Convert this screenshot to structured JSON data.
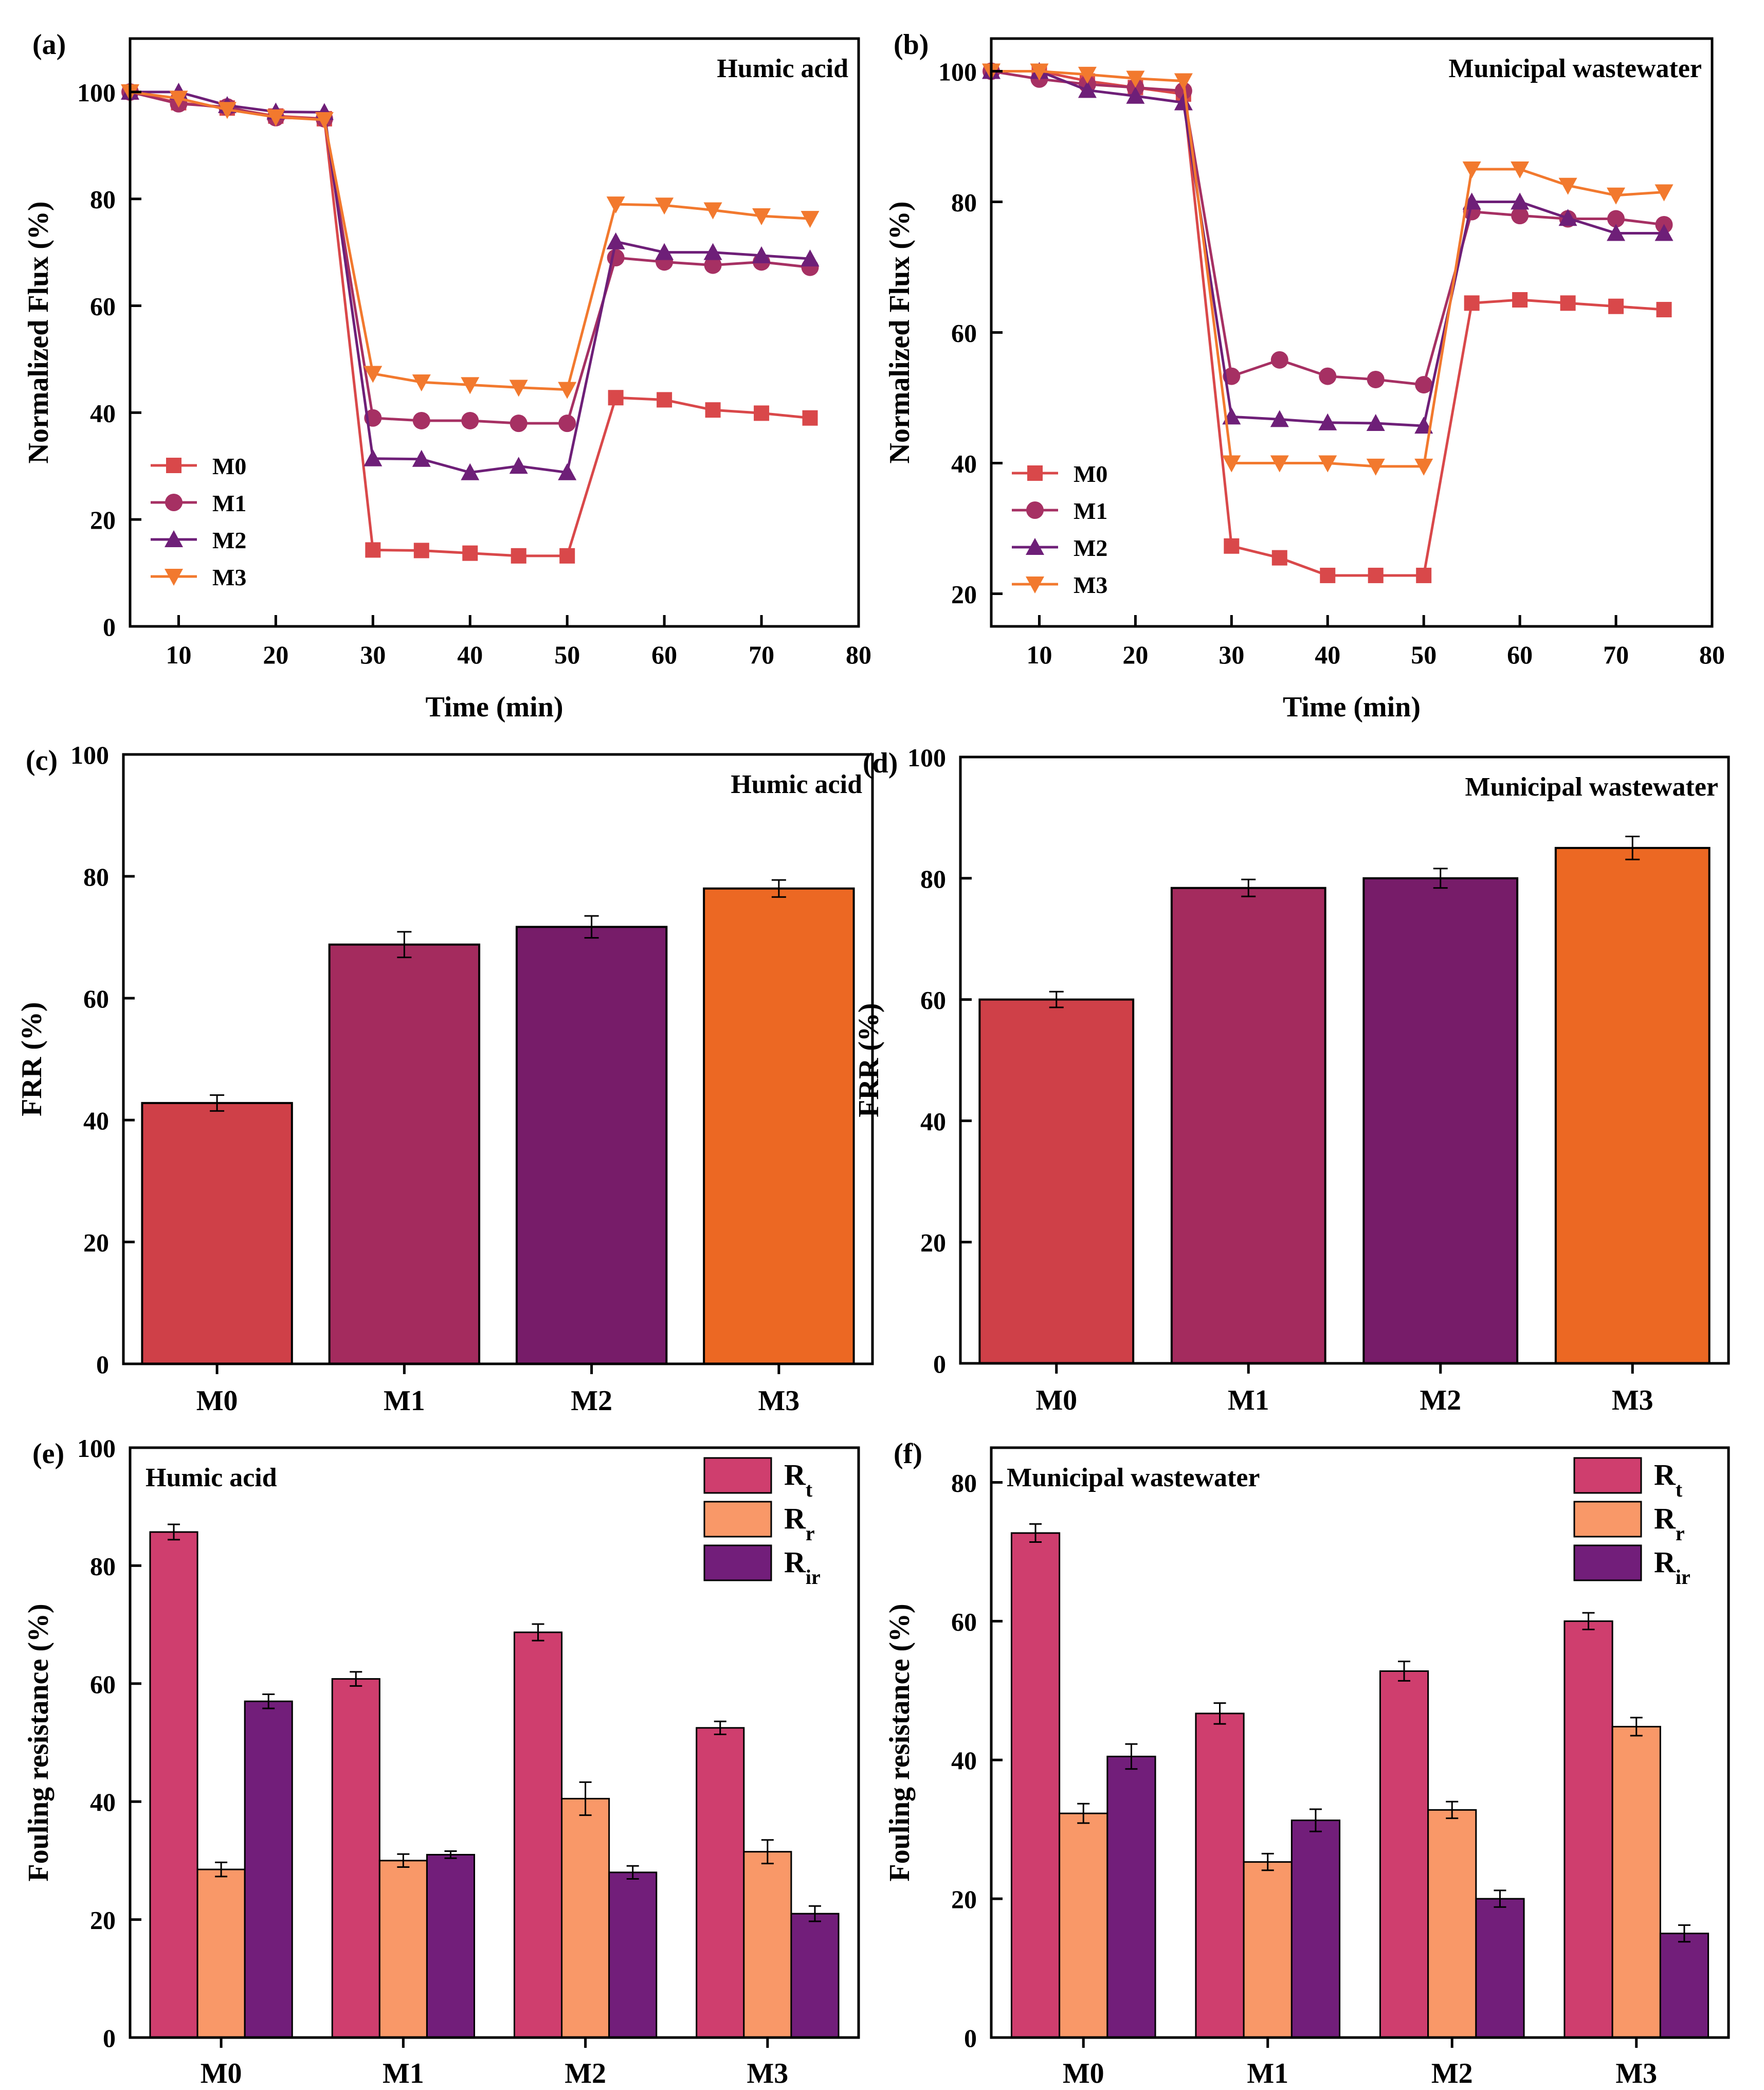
{
  "figure": {
    "description_none": ""
  },
  "chart_data": [
    {
      "id": "a",
      "type": "line",
      "panel_label": "(a)",
      "title": "Humic acid",
      "xlabel": "Time (min)",
      "ylabel": "Normalized Flux (%)",
      "xlim": [
        5,
        80
      ],
      "ylim": [
        0,
        110
      ],
      "xticks": [
        10,
        20,
        30,
        40,
        50,
        60,
        70,
        80
      ],
      "yticks": [
        0,
        20,
        40,
        60,
        80,
        100
      ],
      "x": [
        5,
        10,
        15,
        20,
        25,
        30,
        35,
        40,
        45,
        50,
        55,
        60,
        65,
        70,
        75
      ],
      "series": [
        {
          "name": "M0",
          "color": "#d9484a",
          "marker": "square",
          "values": [
            100,
            98,
            97,
            95.5,
            95,
            14.3,
            14.2,
            13.7,
            13.2,
            13.2,
            42.8,
            42.4,
            40.5,
            39.9,
            39
          ]
        },
        {
          "name": "M1",
          "color": "#a63063",
          "marker": "circle",
          "values": [
            100,
            97.8,
            97.2,
            95.2,
            95,
            39,
            38.5,
            38.5,
            38,
            38,
            69,
            68.2,
            67.6,
            68.2,
            67.2
          ]
        },
        {
          "name": "M2",
          "color": "#6e1f78",
          "marker": "triangle-up",
          "values": [
            100,
            100,
            97.5,
            96.3,
            96.2,
            31.4,
            31.3,
            28.8,
            30,
            28.8,
            72,
            70,
            70,
            69.4,
            68.8
          ]
        },
        {
          "name": "M3",
          "color": "#f2792e",
          "marker": "triangle-down",
          "values": [
            100,
            98.8,
            96.7,
            95.3,
            94.8,
            47.3,
            45.7,
            45.2,
            44.7,
            44.3,
            79,
            78.8,
            77.9,
            76.8,
            76.3
          ]
        }
      ]
    },
    {
      "id": "b",
      "type": "line",
      "panel_label": "(b)",
      "title": "Municipal wastewater",
      "xlabel": "Time (min)",
      "ylabel": "Normalized Flux (%)",
      "xlim": [
        5,
        80
      ],
      "ylim": [
        15,
        105
      ],
      "xticks": [
        10,
        20,
        30,
        40,
        50,
        60,
        70,
        80
      ],
      "yticks": [
        20,
        40,
        60,
        80,
        100
      ],
      "x": [
        5,
        10,
        15,
        20,
        25,
        30,
        35,
        40,
        45,
        50,
        55,
        60,
        65,
        70,
        75
      ],
      "series": [
        {
          "name": "M0",
          "color": "#d9484a",
          "marker": "square",
          "values": [
            100,
            100,
            98.5,
            97.5,
            96.5,
            27.3,
            25.5,
            22.8,
            22.8,
            22.8,
            64.5,
            65,
            64.5,
            64,
            63.5
          ]
        },
        {
          "name": "M1",
          "color": "#a63063",
          "marker": "circle",
          "values": [
            100,
            98.8,
            98,
            97.5,
            97,
            53.3,
            55.8,
            53.3,
            52.8,
            52,
            78.5,
            77.9,
            77.4,
            77.4,
            76.5
          ]
        },
        {
          "name": "M2",
          "color": "#6e1f78",
          "marker": "triangle-up",
          "values": [
            100,
            100,
            97.1,
            96.2,
            95.2,
            47.1,
            46.7,
            46.2,
            46.1,
            45.7,
            80,
            80,
            77.5,
            75.2,
            75.2
          ]
        },
        {
          "name": "M3",
          "color": "#f2792e",
          "marker": "triangle-down",
          "values": [
            100,
            100,
            99.5,
            98.9,
            98.5,
            40,
            40,
            40,
            39.5,
            39.5,
            85,
            85,
            82.5,
            81,
            81.5
          ]
        }
      ]
    },
    {
      "id": "c",
      "type": "bar",
      "panel_label": "(c)",
      "title": "Humic acid",
      "xlabel": "",
      "ylabel": "FRR (%)",
      "ylim": [
        0,
        100
      ],
      "yticks": [
        0,
        20,
        40,
        60,
        80,
        100
      ],
      "categories": [
        "M0",
        "M1",
        "M2",
        "M3"
      ],
      "values": [
        42.8,
        68.8,
        71.7,
        78
      ],
      "errors": [
        1.3,
        2.1,
        1.8,
        1.4
      ],
      "colors": [
        "#cf4048",
        "#a42b5e",
        "#771c69",
        "#ec6823"
      ]
    },
    {
      "id": "d",
      "type": "bar",
      "panel_label": "(d)",
      "title": "Municipal wastewater",
      "xlabel": "",
      "ylabel": "FRR (%)",
      "ylim": [
        0,
        100
      ],
      "yticks": [
        0,
        20,
        40,
        60,
        80,
        100
      ],
      "categories": [
        "M0",
        "M1",
        "M2",
        "M3"
      ],
      "values": [
        60,
        78.4,
        80,
        85
      ],
      "errors": [
        1.3,
        1.4,
        1.6,
        1.9
      ],
      "colors": [
        "#cf4048",
        "#a42b5e",
        "#771c69",
        "#ec6823"
      ]
    },
    {
      "id": "e",
      "type": "bar",
      "panel_label": "(e)",
      "title": "Humic acid",
      "xlabel": "",
      "ylabel": "Fouling resistance (%)",
      "ylim": [
        0,
        100
      ],
      "yticks": [
        0,
        20,
        40,
        60,
        80,
        100
      ],
      "categories": [
        "M0",
        "M1",
        "M2",
        "M3"
      ],
      "series": [
        {
          "name": "R_t",
          "label_main": "R",
          "label_sub": "t",
          "color": "#cf3e6e",
          "values": [
            85.7,
            60.8,
            68.7,
            52.5
          ],
          "errors": [
            1.3,
            1.2,
            1.4,
            1.1
          ]
        },
        {
          "name": "R_r",
          "label_main": "R",
          "label_sub": "r",
          "color": "#f99868",
          "values": [
            28.5,
            30,
            40.5,
            31.5
          ],
          "errors": [
            1.2,
            1.1,
            2.8,
            2
          ]
        },
        {
          "name": "R_ir",
          "label_main": "R",
          "label_sub": "ir",
          "color": "#721e7a",
          "values": [
            57,
            31,
            28,
            21
          ],
          "errors": [
            1.2,
            0.6,
            1.1,
            1.3
          ]
        }
      ]
    },
    {
      "id": "f",
      "type": "bar",
      "panel_label": "(f)",
      "title": "Municipal wastewater",
      "xlabel": "",
      "ylabel": "Fouling resistance (%)",
      "ylim": [
        0,
        85
      ],
      "yticks": [
        0,
        20,
        40,
        60,
        80
      ],
      "categories": [
        "M0",
        "M1",
        "M2",
        "M3"
      ],
      "series": [
        {
          "name": "R_t",
          "label_main": "R",
          "label_sub": "t",
          "color": "#cf3e6e",
          "values": [
            72.7,
            46.7,
            52.8,
            60
          ],
          "errors": [
            1.3,
            1.5,
            1.4,
            1.2
          ]
        },
        {
          "name": "R_r",
          "label_main": "R",
          "label_sub": "r",
          "color": "#f99868",
          "values": [
            32.3,
            25.3,
            32.8,
            44.8
          ],
          "errors": [
            1.4,
            1.2,
            1.2,
            1.3
          ]
        },
        {
          "name": "R_ir",
          "label_main": "R",
          "label_sub": "ir",
          "color": "#721e7a",
          "values": [
            40.5,
            31.3,
            20,
            15
          ],
          "errors": [
            1.8,
            1.6,
            1.2,
            1.2
          ]
        }
      ]
    }
  ]
}
